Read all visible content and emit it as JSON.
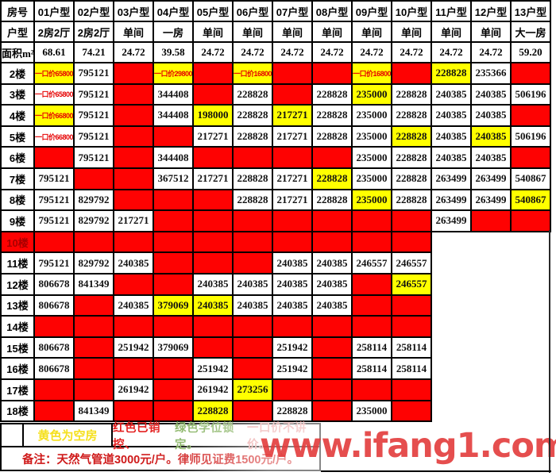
{
  "header": {
    "rows": [
      [
        "房号",
        "01户型",
        "02户型",
        "03户型",
        "04户型",
        "05户型",
        "06户型",
        "07户型",
        "08户型",
        "09户型",
        "10户型",
        "11户型",
        "12户型",
        "13户型"
      ],
      [
        "户型",
        "2房2厅",
        "2房2厅",
        "单间",
        "一房",
        "单间",
        "单间",
        "单间",
        "单间",
        "单间",
        "单间",
        "单间",
        "单间",
        "大一房"
      ],
      [
        "面积m²",
        "68.61",
        "74.21",
        "24.72",
        "39.58",
        "24.72",
        "24.72",
        "24.72",
        "24.72",
        "24.72",
        "24.72",
        "24.72",
        "24.72",
        "59.20"
      ]
    ]
  },
  "floors": [
    {
      "label": "2楼",
      "cells": [
        {
          "t": "一口价658000",
          "bg": "y",
          "p": 1
        },
        {
          "t": "795121",
          "bg": "w"
        },
        {
          "bg": "r"
        },
        {
          "t": "一口价298000",
          "bg": "y",
          "p": 1
        },
        {
          "bg": "r"
        },
        {
          "t": "一口价168000",
          "bg": "y",
          "p": 1
        },
        {
          "bg": "r"
        },
        {
          "bg": "r"
        },
        {
          "t": "一口价168000",
          "bg": "y",
          "p": 1
        },
        {
          "bg": "r"
        },
        {
          "t": "228828",
          "bg": "y"
        },
        {
          "t": "235366",
          "bg": "w"
        },
        {
          "bg": "r"
        }
      ]
    },
    {
      "label": "3楼",
      "cells": [
        {
          "t": "一口价658000",
          "bg": "w",
          "p": 1
        },
        {
          "t": "795121",
          "bg": "w"
        },
        {
          "bg": "r"
        },
        {
          "t": "344408",
          "bg": "w"
        },
        {
          "bg": "r"
        },
        {
          "t": "228828",
          "bg": "w"
        },
        {
          "bg": "r"
        },
        {
          "t": "228828",
          "bg": "w"
        },
        {
          "t": "235000",
          "bg": "y"
        },
        {
          "t": "228828",
          "bg": "w"
        },
        {
          "t": "240385",
          "bg": "w"
        },
        {
          "t": "240385",
          "bg": "w"
        },
        {
          "t": "506196",
          "bg": "w"
        }
      ]
    },
    {
      "label": "4楼",
      "cells": [
        {
          "t": "一口价668000",
          "bg": "y",
          "p": 1
        },
        {
          "t": "795121",
          "bg": "w"
        },
        {
          "bg": "r"
        },
        {
          "t": "344408",
          "bg": "w"
        },
        {
          "t": "198000",
          "bg": "y"
        },
        {
          "t": "228828",
          "bg": "w"
        },
        {
          "t": "217271",
          "bg": "y"
        },
        {
          "t": "228828",
          "bg": "w"
        },
        {
          "t": "235000",
          "bg": "w"
        },
        {
          "t": "228828",
          "bg": "w"
        },
        {
          "t": "240385",
          "bg": "w"
        },
        {
          "t": "240385",
          "bg": "w"
        },
        {
          "bg": "r"
        }
      ]
    },
    {
      "label": "5楼",
      "cells": [
        {
          "t": "一口价668000",
          "bg": "w",
          "p": 1
        },
        {
          "t": "795121",
          "bg": "w"
        },
        {
          "bg": "r"
        },
        {
          "bg": "r"
        },
        {
          "t": "217271",
          "bg": "w"
        },
        {
          "t": "228828",
          "bg": "w"
        },
        {
          "t": "217271",
          "bg": "w"
        },
        {
          "t": "228828",
          "bg": "w"
        },
        {
          "t": "235000",
          "bg": "w"
        },
        {
          "t": "228828",
          "bg": "y"
        },
        {
          "t": "240385",
          "bg": "w"
        },
        {
          "t": "240385",
          "bg": "y"
        },
        {
          "t": "506196",
          "bg": "w"
        }
      ]
    },
    {
      "label": "6楼",
      "cells": [
        {
          "bg": "r"
        },
        {
          "t": "795121",
          "bg": "w"
        },
        {
          "bg": "r"
        },
        {
          "t": "344408",
          "bg": "w"
        },
        {
          "bg": "r"
        },
        {
          "bg": "r"
        },
        {
          "bg": "r"
        },
        {
          "bg": "r"
        },
        {
          "t": "235000",
          "bg": "w"
        },
        {
          "t": "228828",
          "bg": "w"
        },
        {
          "t": "240385",
          "bg": "w"
        },
        {
          "t": "240385",
          "bg": "w"
        },
        {
          "bg": "r"
        }
      ]
    },
    {
      "label": "7楼",
      "cells": [
        {
          "t": "795121",
          "bg": "w"
        },
        {
          "bg": "r"
        },
        {
          "bg": "r"
        },
        {
          "t": "367512",
          "bg": "w"
        },
        {
          "t": "217271",
          "bg": "w"
        },
        {
          "t": "228828",
          "bg": "w"
        },
        {
          "t": "217271",
          "bg": "w"
        },
        {
          "t": "228828",
          "bg": "y"
        },
        {
          "t": "235000",
          "bg": "w"
        },
        {
          "t": "228828",
          "bg": "w"
        },
        {
          "t": "263499",
          "bg": "w"
        },
        {
          "t": "263499",
          "bg": "w"
        },
        {
          "t": "540867",
          "bg": "w"
        }
      ]
    },
    {
      "label": "8楼",
      "cells": [
        {
          "t": "795121",
          "bg": "w"
        },
        {
          "t": "829792",
          "bg": "w"
        },
        {
          "bg": "r"
        },
        {
          "bg": "r"
        },
        {
          "bg": "r"
        },
        {
          "t": "228828",
          "bg": "w"
        },
        {
          "t": "217271",
          "bg": "w"
        },
        {
          "t": "228828",
          "bg": "w"
        },
        {
          "t": "235000",
          "bg": "y"
        },
        {
          "t": "228828",
          "bg": "w"
        },
        {
          "t": "263499",
          "bg": "w"
        },
        {
          "t": "263499",
          "bg": "w"
        },
        {
          "t": "540867",
          "bg": "y"
        }
      ]
    },
    {
      "label": "9楼",
      "cells": [
        {
          "t": "795121",
          "bg": "w"
        },
        {
          "t": "829792",
          "bg": "w"
        },
        {
          "t": "217271",
          "bg": "w"
        },
        {
          "bg": "r"
        },
        {
          "bg": "r"
        },
        {
          "bg": "r"
        },
        {
          "bg": "r"
        },
        {
          "bg": "r"
        },
        {
          "bg": "r"
        },
        {
          "bg": "r"
        },
        {
          "t": "263499",
          "bg": "w"
        },
        {
          "bg": "r"
        },
        {
          "bg": "r"
        }
      ]
    },
    {
      "label": "10楼",
      "label_bg": "r",
      "cells": [
        {
          "bg": "r"
        },
        {
          "bg": "r"
        },
        {
          "bg": "r"
        },
        {
          "bg": "r"
        },
        {
          "bg": "r"
        },
        {
          "bg": "r"
        },
        {
          "bg": "r"
        },
        {
          "bg": "r"
        },
        {
          "bg": "r"
        },
        {
          "bg": "r"
        },
        {
          "bg": "n"
        },
        {
          "bg": "n"
        },
        {
          "bg": "n"
        }
      ]
    },
    {
      "label": "11楼",
      "cells": [
        {
          "t": "795121",
          "bg": "w"
        },
        {
          "t": "829792",
          "bg": "w"
        },
        {
          "t": "240385",
          "bg": "w"
        },
        {
          "bg": "r"
        },
        {
          "bg": "r"
        },
        {
          "bg": "r"
        },
        {
          "t": "240385",
          "bg": "w"
        },
        {
          "t": "240385",
          "bg": "w"
        },
        {
          "t": "246557",
          "bg": "w"
        },
        {
          "t": "246557",
          "bg": "w"
        },
        {
          "bg": "n"
        },
        {
          "bg": "n"
        },
        {
          "bg": "n"
        }
      ]
    },
    {
      "label": "12楼",
      "cells": [
        {
          "t": "806678",
          "bg": "w"
        },
        {
          "t": "841349",
          "bg": "w"
        },
        {
          "bg": "r"
        },
        {
          "bg": "r"
        },
        {
          "t": "240385",
          "bg": "w"
        },
        {
          "t": "240385",
          "bg": "w"
        },
        {
          "t": "240385",
          "bg": "w"
        },
        {
          "t": "240385",
          "bg": "w"
        },
        {
          "bg": "r"
        },
        {
          "t": "246557",
          "bg": "y"
        },
        {
          "bg": "n"
        },
        {
          "bg": "n"
        },
        {
          "bg": "n"
        }
      ]
    },
    {
      "label": "13楼",
      "cells": [
        {
          "t": "806678",
          "bg": "w"
        },
        {
          "bg": "r"
        },
        {
          "t": "240385",
          "bg": "w"
        },
        {
          "t": "379069",
          "bg": "y"
        },
        {
          "t": "240385",
          "bg": "y"
        },
        {
          "t": "240385",
          "bg": "w"
        },
        {
          "t": "240385",
          "bg": "w"
        },
        {
          "t": "240385",
          "bg": "w"
        },
        {
          "bg": "r"
        },
        {
          "bg": "r"
        },
        {
          "bg": "n"
        },
        {
          "bg": "n"
        },
        {
          "bg": "n"
        }
      ]
    },
    {
      "label": "14楼",
      "cells": [
        {
          "bg": "r"
        },
        {
          "bg": "r"
        },
        {
          "bg": "r"
        },
        {
          "bg": "r"
        },
        {
          "bg": "r"
        },
        {
          "bg": "r"
        },
        {
          "bg": "r"
        },
        {
          "bg": "r"
        },
        {
          "bg": "r"
        },
        {
          "bg": "r"
        },
        {
          "bg": "n"
        },
        {
          "bg": "n"
        },
        {
          "bg": "n"
        }
      ]
    },
    {
      "label": "15楼",
      "cells": [
        {
          "t": "806678",
          "bg": "w"
        },
        {
          "bg": "r"
        },
        {
          "t": "251942",
          "bg": "w"
        },
        {
          "t": "379069",
          "bg": "w"
        },
        {
          "bg": "r"
        },
        {
          "bg": "r"
        },
        {
          "t": "251942",
          "bg": "w"
        },
        {
          "bg": "r"
        },
        {
          "t": "258114",
          "bg": "w"
        },
        {
          "t": "258114",
          "bg": "w"
        },
        {
          "bg": "n"
        },
        {
          "bg": "n"
        },
        {
          "bg": "n"
        }
      ]
    },
    {
      "label": "16楼",
      "cells": [
        {
          "t": "806678",
          "bg": "w"
        },
        {
          "bg": "r"
        },
        {
          "bg": "r"
        },
        {
          "bg": "r"
        },
        {
          "t": "251942",
          "bg": "w"
        },
        {
          "bg": "r"
        },
        {
          "t": "251942",
          "bg": "w"
        },
        {
          "bg": "r"
        },
        {
          "t": "258114",
          "bg": "w"
        },
        {
          "t": "258114",
          "bg": "w"
        },
        {
          "bg": "n"
        },
        {
          "bg": "n"
        },
        {
          "bg": "n"
        }
      ]
    },
    {
      "label": "17楼",
      "cells": [
        {
          "bg": "r"
        },
        {
          "bg": "r"
        },
        {
          "t": "261942",
          "bg": "w"
        },
        {
          "bg": "r"
        },
        {
          "t": "261942",
          "bg": "w"
        },
        {
          "t": "273256",
          "bg": "y"
        },
        {
          "bg": "r"
        },
        {
          "bg": "r"
        },
        {
          "bg": "r"
        },
        {
          "bg": "r"
        },
        {
          "bg": "n"
        },
        {
          "bg": "n"
        },
        {
          "bg": "n"
        }
      ]
    },
    {
      "label": "18楼",
      "cells": [
        {
          "bg": "r"
        },
        {
          "t": "841349",
          "bg": "w"
        },
        {
          "bg": "r"
        },
        {
          "bg": "r"
        },
        {
          "t": "228828",
          "bg": "y"
        },
        {
          "bg": "r"
        },
        {
          "t": "228828",
          "bg": "w"
        },
        {
          "bg": "r"
        },
        {
          "t": "235000",
          "bg": "w"
        },
        {
          "bg": "r"
        },
        {
          "bg": "n"
        },
        {
          "bg": "n"
        },
        {
          "bg": "n"
        }
      ]
    }
  ],
  "legend": {
    "vacant": "黄色为空房",
    "sold": "红色已销控、",
    "locked": "绿色学位锁定。",
    "fixed": "一口价不讲价。"
  },
  "remark": "备注：天然气管道3000元/户。律师见证费1500元/户。",
  "watermark": "www.ifang1.com",
  "colors": {
    "cell_sold_red": "#fe0202",
    "cell_vacant_yellow": "#ffff00",
    "fixed_price_text": "#e60000",
    "legend_yellow": "#f5e01e",
    "legend_red": "#e31f1f",
    "legend_green": "#7fae58",
    "legend_pink": "#ea9c9c",
    "remark_red": "#cf1a1a",
    "watermark_red": "#e23b3b"
  }
}
